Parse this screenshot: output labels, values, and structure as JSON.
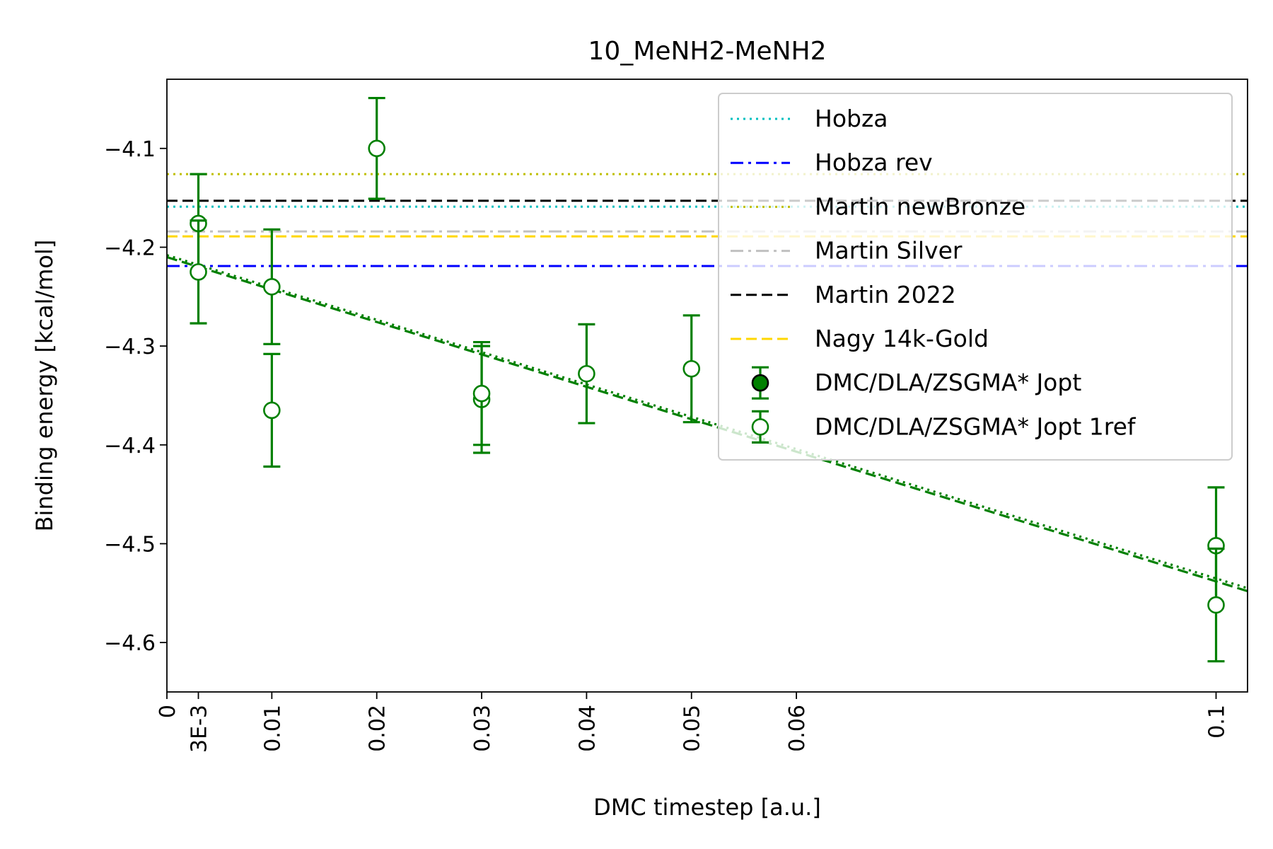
{
  "chart_data": {
    "type": "scatter",
    "title": "10_MeNH2-MeNH2",
    "xlabel": "DMC timestep [a.u.]",
    "ylabel": "Binding energy [kcal/mol]",
    "xlim": [
      0,
      0.103
    ],
    "ylim": [
      -4.65,
      -4.03
    ],
    "x_ticks": [
      {
        "value": 0,
        "label": "0"
      },
      {
        "value": 0.003,
        "label": "3E-3"
      },
      {
        "value": 0.01,
        "label": "0.01"
      },
      {
        "value": 0.02,
        "label": "0.02"
      },
      {
        "value": 0.03,
        "label": "0.03"
      },
      {
        "value": 0.04,
        "label": "0.04"
      },
      {
        "value": 0.05,
        "label": "0.05"
      },
      {
        "value": 0.06,
        "label": "0.06"
      },
      {
        "value": 0.1,
        "label": "0.1"
      }
    ],
    "y_ticks": [
      {
        "value": -4.1,
        "label": "−4.1"
      },
      {
        "value": -4.2,
        "label": "−4.2"
      },
      {
        "value": -4.3,
        "label": "−4.3"
      },
      {
        "value": -4.4,
        "label": "−4.4"
      },
      {
        "value": -4.5,
        "label": "−4.5"
      },
      {
        "value": -4.6,
        "label": "−4.6"
      }
    ],
    "grid": false,
    "legend_position": "top-right",
    "reference_lines": [
      {
        "name": "Hobza",
        "y": -4.159,
        "color": "#00bfbf",
        "style": "dotted"
      },
      {
        "name": "Hobza rev",
        "y": -4.219,
        "color": "#0000ff",
        "style": "dashdot"
      },
      {
        "name": "Martin newBronze",
        "y": -4.126,
        "color": "#bfbf00",
        "style": "dotted"
      },
      {
        "name": "Martin Silver",
        "y": -4.184,
        "color": "#c0c0c0",
        "style": "dashdot"
      },
      {
        "name": "Martin 2022",
        "y": -4.153,
        "color": "#000000",
        "style": "dashed"
      },
      {
        "name": "Nagy 14k-Gold",
        "y": -4.189,
        "color": "#ffd700",
        "style": "dashed"
      }
    ],
    "series": [
      {
        "name": "DMC/DLA/ZSGMA* Jopt",
        "color": "#008000",
        "marker": "filled-circle",
        "points": []
      },
      {
        "name": "DMC/DLA/ZSGMA* Jopt 1ref",
        "color": "#008000",
        "marker": "open-circle",
        "points": [
          {
            "x": 0.003,
            "y": -4.176,
            "err": 0.05
          },
          {
            "x": 0.003,
            "y": -4.225,
            "err": 0.052
          },
          {
            "x": 0.01,
            "y": -4.24,
            "err": 0.058
          },
          {
            "x": 0.01,
            "y": -4.365,
            "err": 0.057
          },
          {
            "x": 0.02,
            "y": -4.1,
            "err": 0.051
          },
          {
            "x": 0.03,
            "y": -4.354,
            "err": 0.054
          },
          {
            "x": 0.03,
            "y": -4.348,
            "err": 0.052
          },
          {
            "x": 0.04,
            "y": -4.328,
            "err": 0.05
          },
          {
            "x": 0.05,
            "y": -4.323,
            "err": 0.054
          },
          {
            "x": 0.1,
            "y": -4.502,
            "err": 0.059
          },
          {
            "x": 0.1,
            "y": -4.562,
            "err": 0.057
          }
        ]
      }
    ],
    "fit_lines": [
      {
        "color": "#008000",
        "style": "dotted",
        "x": [
          0,
          0.103
        ],
        "y": [
          -4.208,
          -4.545
        ]
      },
      {
        "color": "#008000",
        "style": "dashed",
        "x": [
          0,
          0.103
        ],
        "y": [
          -4.21,
          -4.548
        ]
      }
    ]
  }
}
